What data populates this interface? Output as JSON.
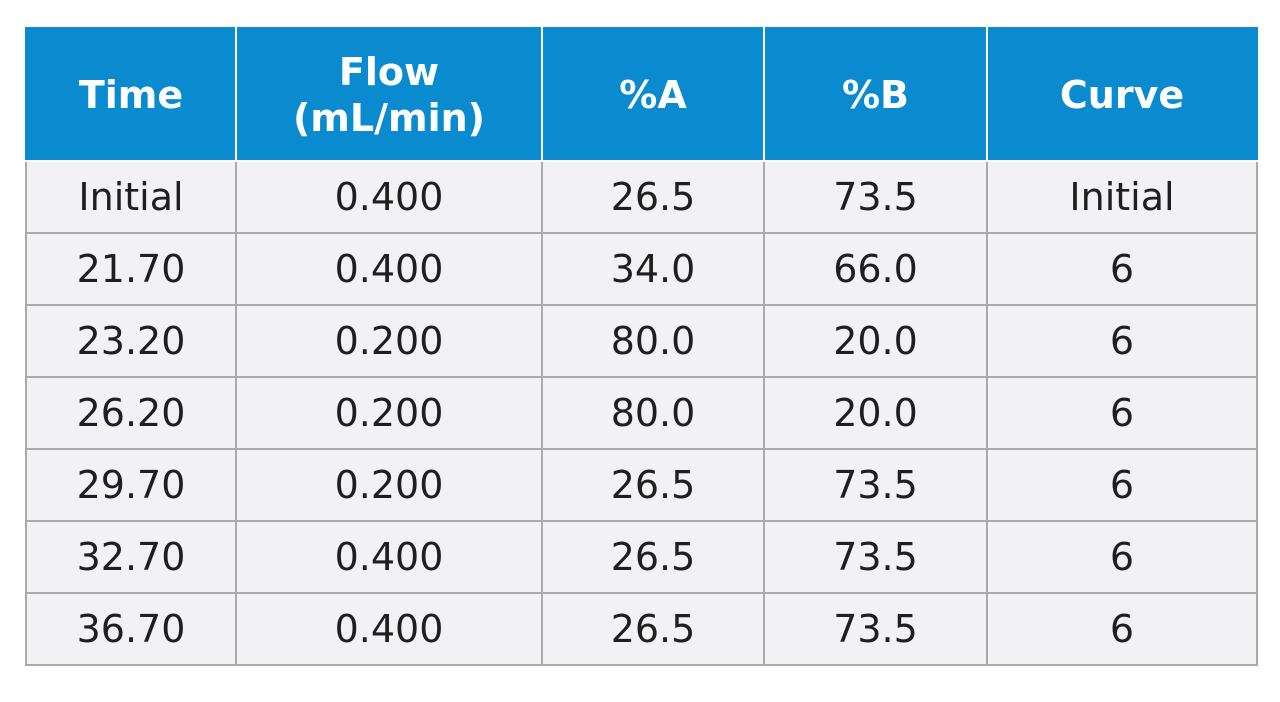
{
  "table": {
    "columns": [
      "Time",
      "Flow\n(mL/min)",
      "%A",
      "%B",
      "Curve"
    ],
    "rows": [
      [
        "Initial",
        "0.400",
        "26.5",
        "73.5",
        "Initial"
      ],
      [
        "21.70",
        "0.400",
        "34.0",
        "66.0",
        "6"
      ],
      [
        "23.20",
        "0.200",
        "80.0",
        "20.0",
        "6"
      ],
      [
        "26.20",
        "0.200",
        "80.0",
        "20.0",
        "6"
      ],
      [
        "29.70",
        "0.200",
        "26.5",
        "73.5",
        "6"
      ],
      [
        "32.70",
        "0.400",
        "26.5",
        "73.5",
        "6"
      ],
      [
        "36.70",
        "0.400",
        "26.5",
        "73.5",
        "6"
      ]
    ]
  },
  "colors": {
    "header_background": "#0a8bd0",
    "header_text": "#ffffff",
    "cell_background": "#f2f2f4",
    "cell_border": "#a9aaab",
    "cell_text": "#1f1f1f"
  }
}
